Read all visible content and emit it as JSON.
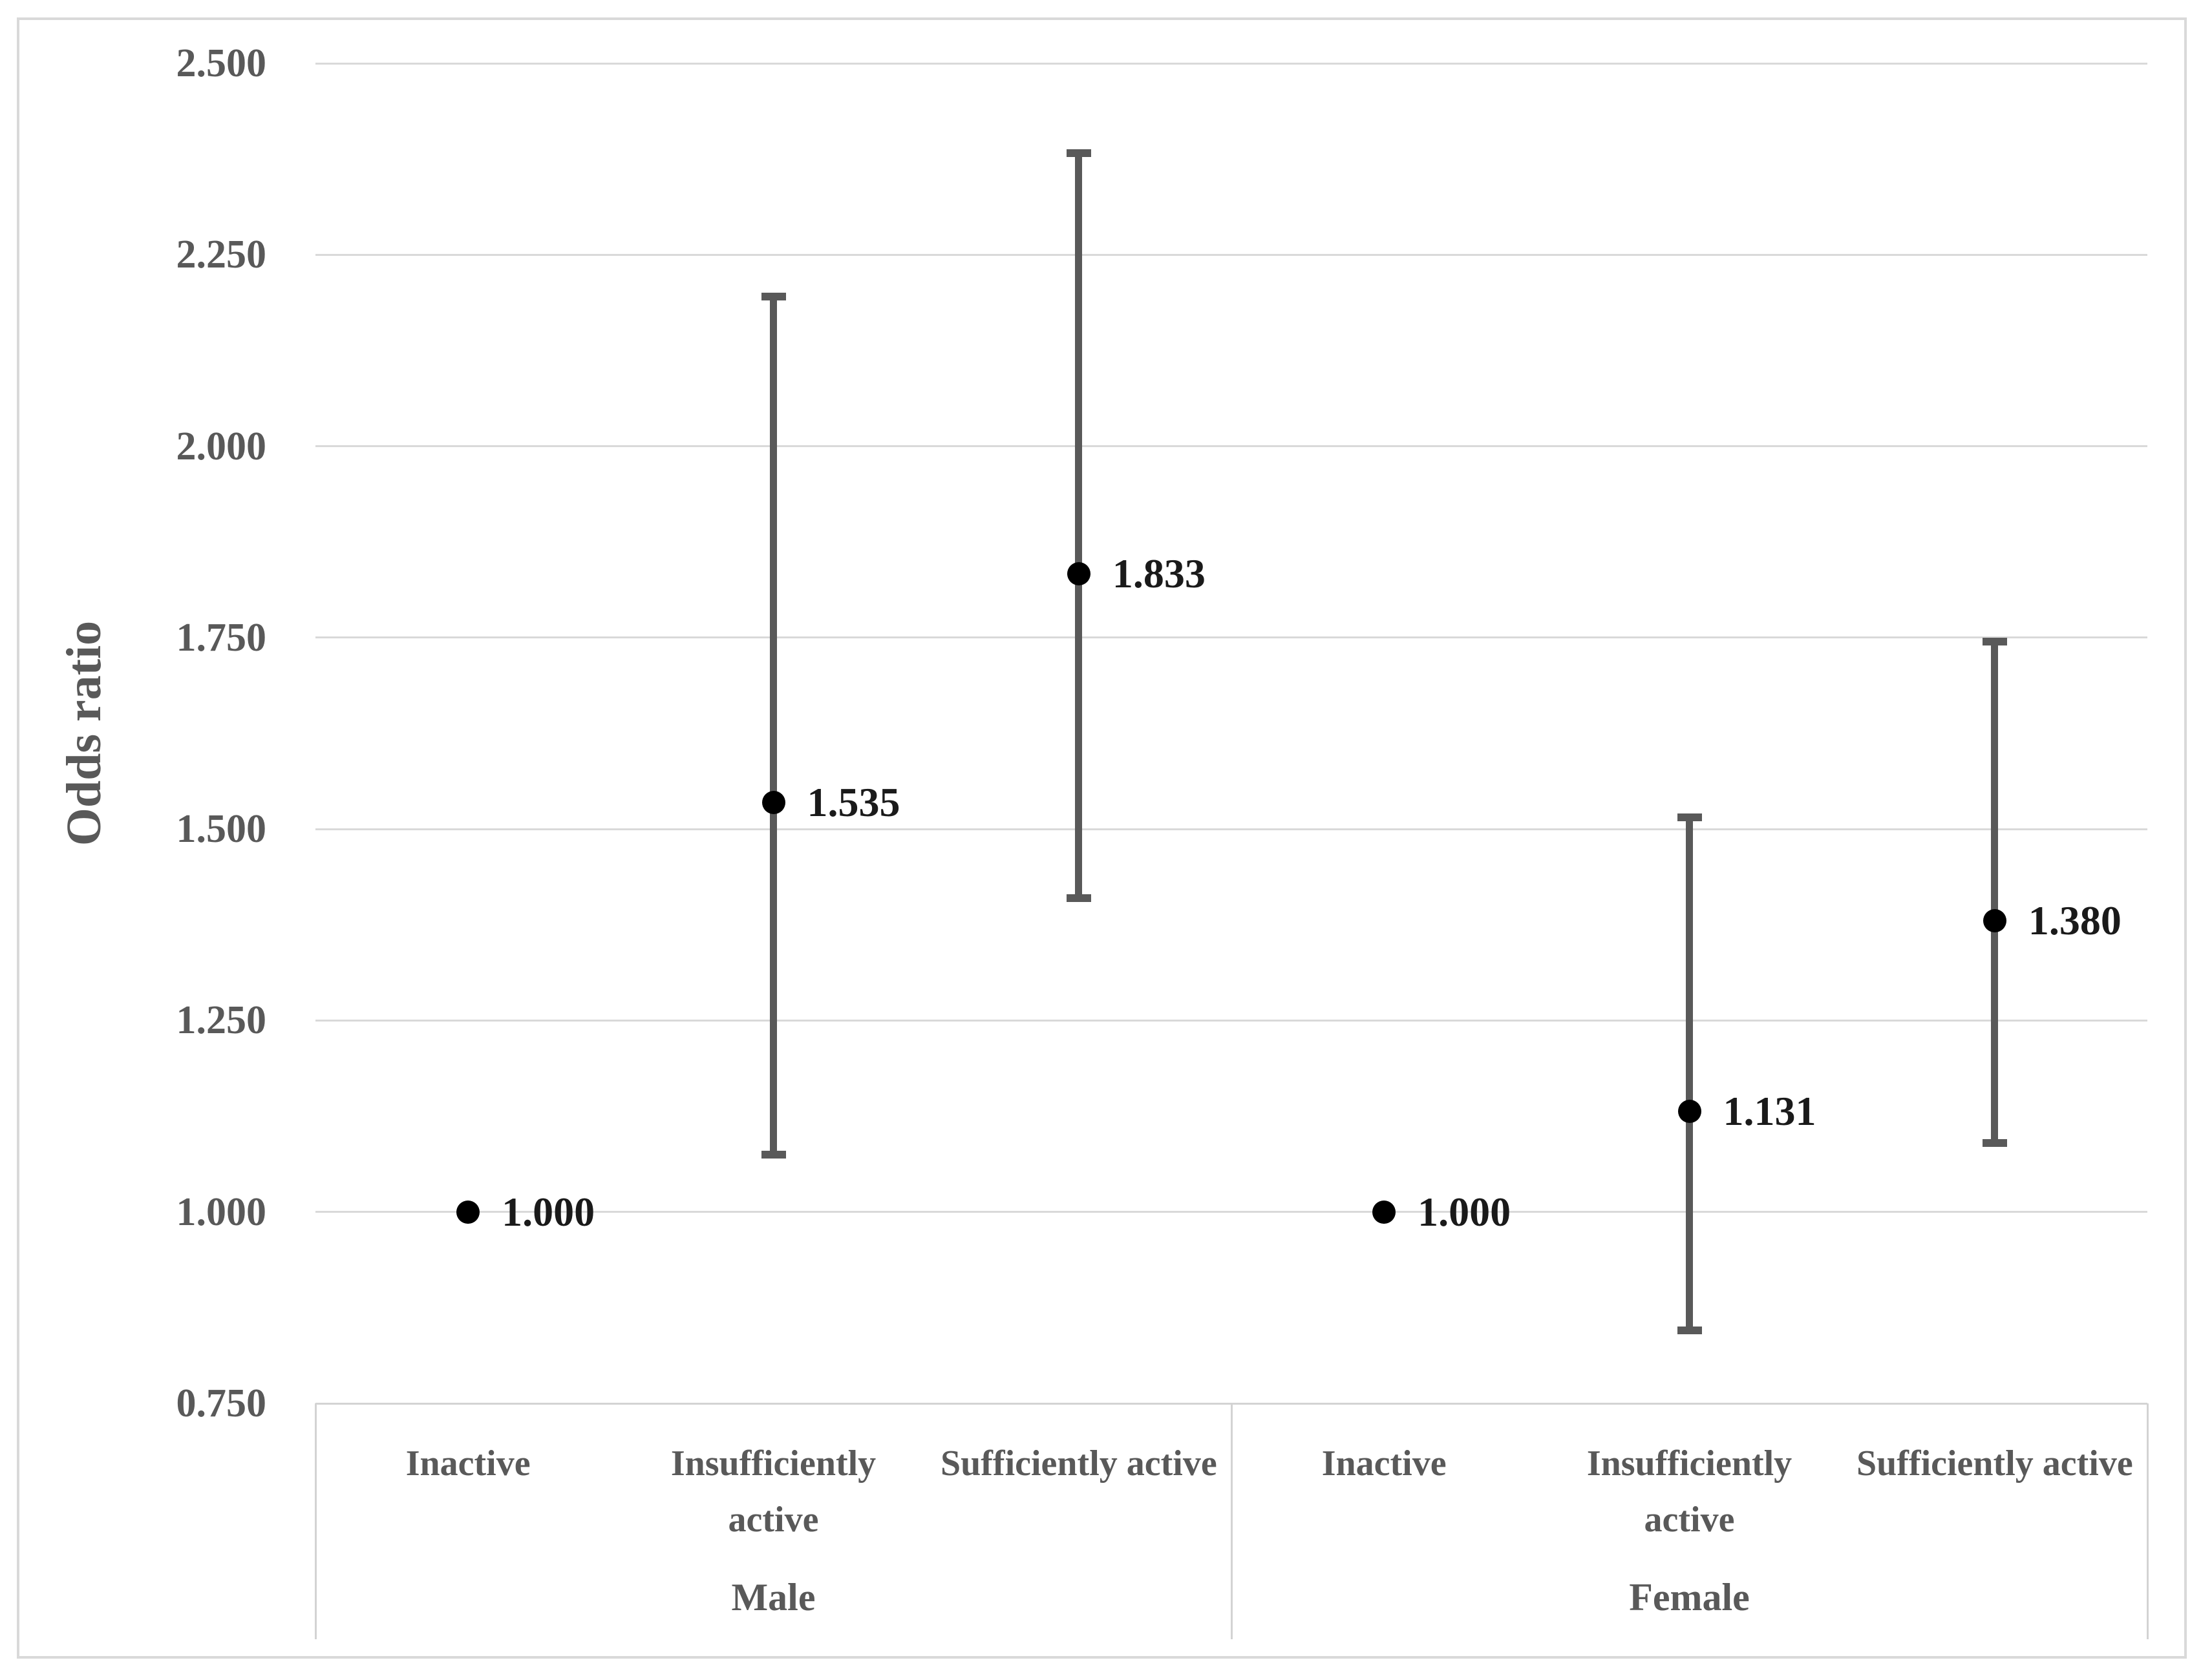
{
  "chart_data": {
    "type": "scatter",
    "subtype": "odds-ratio-forest-plot",
    "title": "",
    "xlabel": "",
    "ylabel": "Odds ratio",
    "ylim": [
      0.75,
      2.5
    ],
    "ytick_labels": [
      "2.500",
      "2.250",
      "2.000",
      "1.750",
      "1.500",
      "1.250",
      "1.000",
      "0.750"
    ],
    "grid": true,
    "legend": null,
    "marker": "filled-circle",
    "groups": [
      {
        "label": "Male",
        "categories": [
          {
            "label": "Inactive",
            "value": 1.0,
            "value_label": "1.000",
            "ci_low": null,
            "ci_high": null
          },
          {
            "label": "Insufficiently active",
            "value": 1.535,
            "value_label": "1.535",
            "ci_low": 1.075,
            "ci_high": 2.195
          },
          {
            "label": "Sufficiently active",
            "value": 1.833,
            "value_label": "1.833",
            "ci_low": 1.41,
            "ci_high": 2.383
          }
        ]
      },
      {
        "label": "Female",
        "categories": [
          {
            "label": "Inactive",
            "value": 1.0,
            "value_label": "1.000",
            "ci_low": null,
            "ci_high": null
          },
          {
            "label": "Insufficiently active",
            "value": 1.131,
            "value_label": "1.131",
            "ci_low": 0.845,
            "ci_high": 1.515
          },
          {
            "label": "Sufficiently active",
            "value": 1.38,
            "value_label": "1.380",
            "ci_low": 1.09,
            "ci_high": 1.745
          }
        ]
      }
    ],
    "colors": {
      "gridline": "#d9d9d9",
      "outer_border": "#d9d9d9",
      "table_border": "#d3d3d3",
      "error_bar": "#595959",
      "axis_text": "#595959",
      "category_text": "#595959",
      "data_label_text": "#1a1a1a",
      "marker": "#000000",
      "background": "#ffffff"
    }
  }
}
